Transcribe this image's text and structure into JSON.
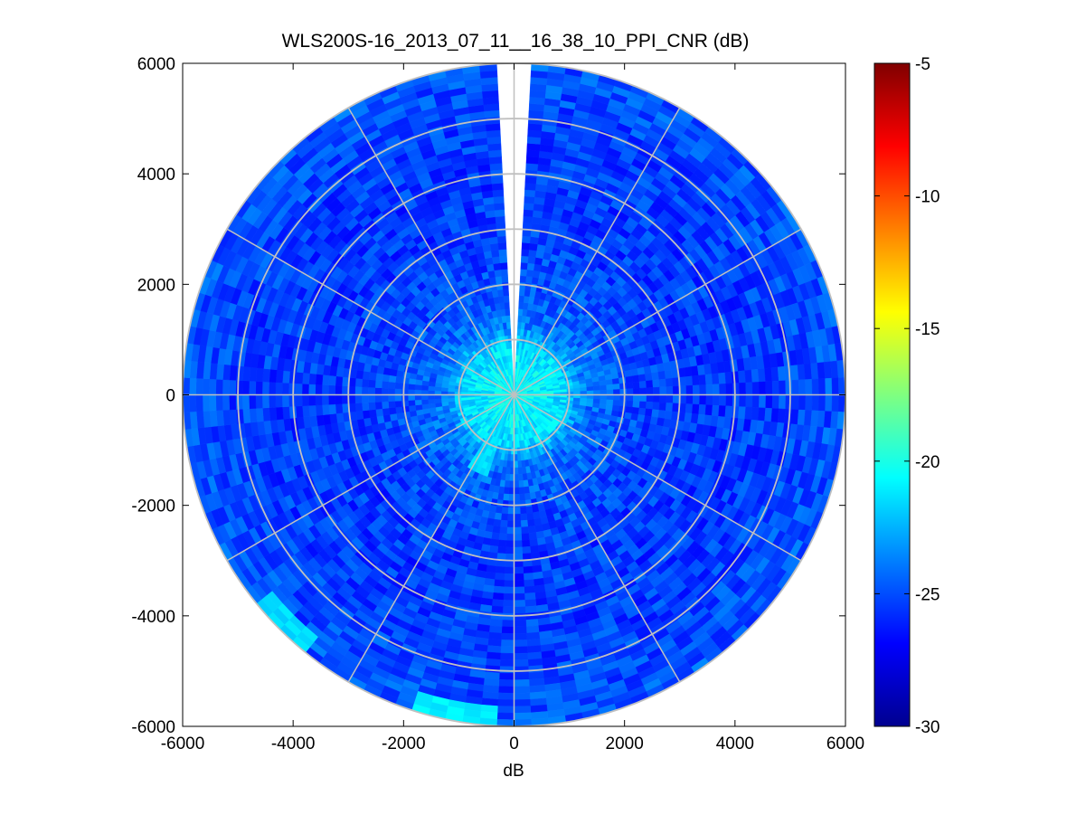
{
  "chart_data": {
    "type": "heatmap",
    "subtype": "polar-ppi-scan",
    "title": "WLS200S-16_2013_07_11__16_38_10_PPI_CNR (dB)",
    "xlabel": "dB",
    "ylabel": "",
    "xlim": [
      -6000,
      6000
    ],
    "ylim": [
      -6000,
      6000
    ],
    "x_ticks": [
      -6000,
      -4000,
      -2000,
      0,
      2000,
      4000,
      6000
    ],
    "y_ticks": [
      -6000,
      -4000,
      -2000,
      0,
      2000,
      4000,
      6000
    ],
    "x_tick_labels": [
      "-6000",
      "-4000",
      "-2000",
      "0",
      "2000",
      "4000",
      "6000"
    ],
    "y_tick_labels": [
      "-6000",
      "-4000",
      "-2000",
      "0",
      "2000",
      "4000",
      "6000"
    ],
    "grid": true,
    "polar_grid": {
      "range_rings": [
        1000,
        2000,
        3000,
        4000,
        5000,
        6000
      ],
      "azimuth_spokes_deg": [
        0,
        30,
        60,
        90,
        120,
        150,
        180,
        210,
        240,
        270,
        300,
        330
      ]
    },
    "max_range": 6000,
    "gap_sector_azimuth_deg": [
      -1,
      1
    ],
    "colormap": "jet",
    "colorbar": {
      "range": [
        -30,
        -5
      ],
      "ticks": [
        -5,
        -10,
        -15,
        -20,
        -25,
        -30
      ],
      "tick_labels": [
        "-5",
        "-10",
        "-15",
        "-20",
        "-25",
        "-30"
      ]
    },
    "cnr_profile": [
      {
        "range": 100,
        "cnr": -20.5
      },
      {
        "range": 500,
        "cnr": -20.8
      },
      {
        "range": 900,
        "cnr": -21.5
      },
      {
        "range": 1300,
        "cnr": -24.0
      },
      {
        "range": 2000,
        "cnr": -25.0
      },
      {
        "range": 3000,
        "cnr": -25.5
      },
      {
        "range": 4000,
        "cnr": -25.5
      },
      {
        "range": 5000,
        "cnr": -25.3
      },
      {
        "range": 6000,
        "cnr": -24.8
      }
    ],
    "notable_features": [
      {
        "azimuth_deg": 205,
        "range": [
          0,
          1500
        ],
        "cnr": -21.5,
        "description": "brighter streak"
      },
      {
        "azimuth_deg": 190,
        "range": [
          5700,
          6000
        ],
        "cnr": -21.0,
        "description": "bright arc"
      },
      {
        "azimuth_deg": 225,
        "range": [
          5600,
          6000
        ],
        "cnr": -21.5,
        "description": "bright arc"
      }
    ]
  }
}
